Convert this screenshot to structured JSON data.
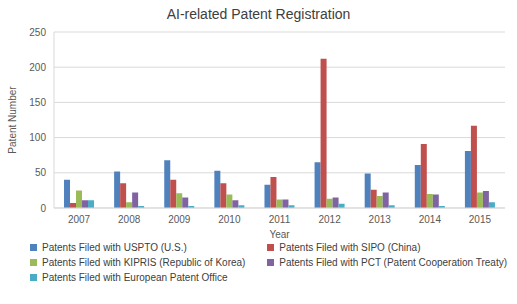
{
  "chart_data": {
    "type": "bar",
    "title": "AI-related Patent Registration",
    "x_label": "Year",
    "y_label": "Patent Number",
    "categories": [
      "2007",
      "2008",
      "2009",
      "2010",
      "2011",
      "2012",
      "2013",
      "2014",
      "2015"
    ],
    "series": [
      {
        "name": "Patents Filed with USPTO (U.S.)",
        "color": "#4f81bd",
        "values": [
          40,
          52,
          68,
          53,
          33,
          65,
          49,
          61,
          81
        ]
      },
      {
        "name": "Patents Filed with SIPO (China)",
        "color": "#c0504d",
        "values": [
          7,
          35,
          40,
          35,
          44,
          212,
          26,
          91,
          117
        ]
      },
      {
        "name": "Patents Filed with KIPRIS (Republic of Korea)",
        "color": "#9bbb59",
        "values": [
          25,
          8,
          21,
          19,
          12,
          13,
          17,
          20,
          22
        ]
      },
      {
        "name": "Patents Filed with PCT (Patent Cooperation Treaty)",
        "color": "#8064a2",
        "values": [
          11,
          22,
          15,
          11,
          12,
          15,
          22,
          19,
          24
        ]
      },
      {
        "name": "Patents Filed with European Patent Office",
        "color": "#4bacc6",
        "values": [
          11,
          3,
          3,
          4,
          4,
          6,
          4,
          3,
          8
        ]
      }
    ],
    "ylim": [
      0,
      250
    ],
    "yticks": [
      0,
      50,
      100,
      150,
      200,
      250
    ],
    "grid": true,
    "legend": "bottom"
  }
}
